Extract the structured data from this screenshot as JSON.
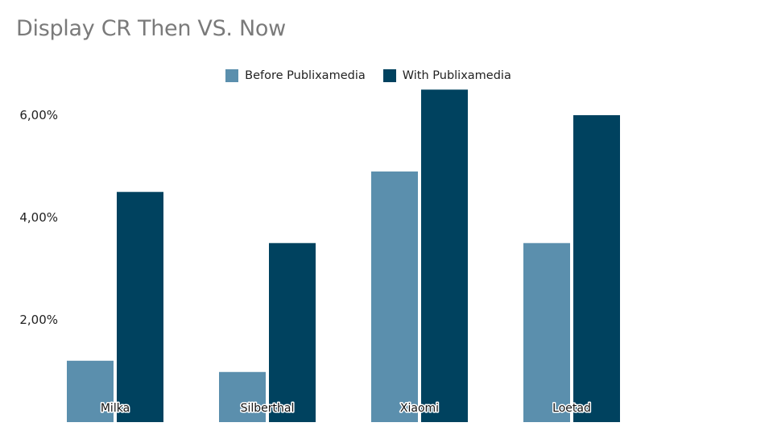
{
  "chart_data": {
    "type": "bar",
    "title": "Display CR Then VS. Now",
    "categories": [
      "Milka",
      "Silberthal",
      "Xiaomi",
      "Loetad"
    ],
    "series": [
      {
        "name": "Before Publixamedia",
        "values": [
          1.2,
          0.98,
          4.9,
          3.5
        ],
        "color": "#5b8fad"
      },
      {
        "name": "With Publixamedia",
        "values": [
          4.5,
          3.5,
          6.5,
          6.0
        ],
        "color": "#00425f"
      }
    ],
    "yticks": [
      "2,00%",
      "4,00%",
      "6,00%"
    ],
    "ytick_values": [
      2,
      4,
      6
    ],
    "ylim": [
      0,
      6.5
    ],
    "ylabel": "",
    "xlabel": "",
    "grid": false,
    "legend_position": "top"
  }
}
